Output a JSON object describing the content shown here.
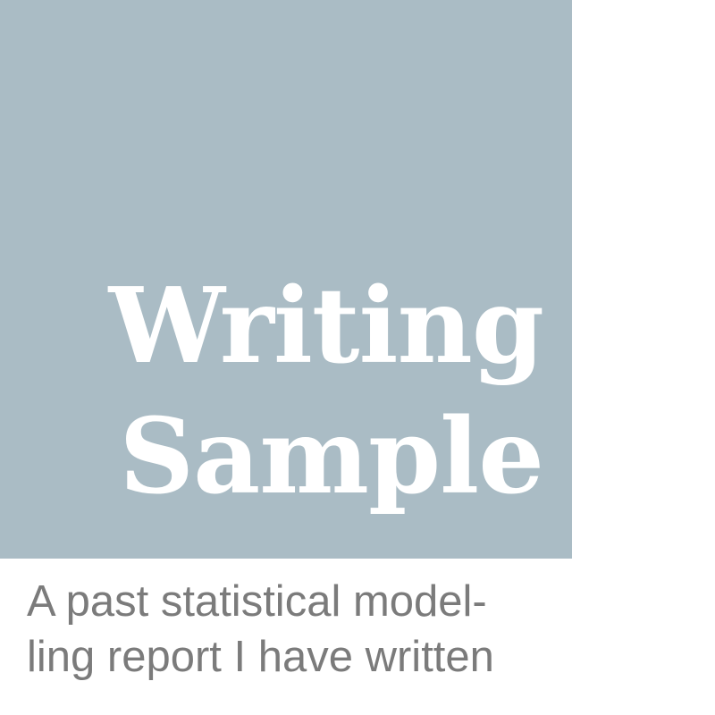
{
  "tile": {
    "title_lines": [
      "Writing",
      "Sample"
    ],
    "caption_lines": [
      "A past statistical model-",
      "ling report I have written"
    ]
  },
  "colors": {
    "panel": "#aabcc5",
    "title_text": "#ffffff",
    "caption_text": "#7b7b7b",
    "background": "#ffffff"
  }
}
